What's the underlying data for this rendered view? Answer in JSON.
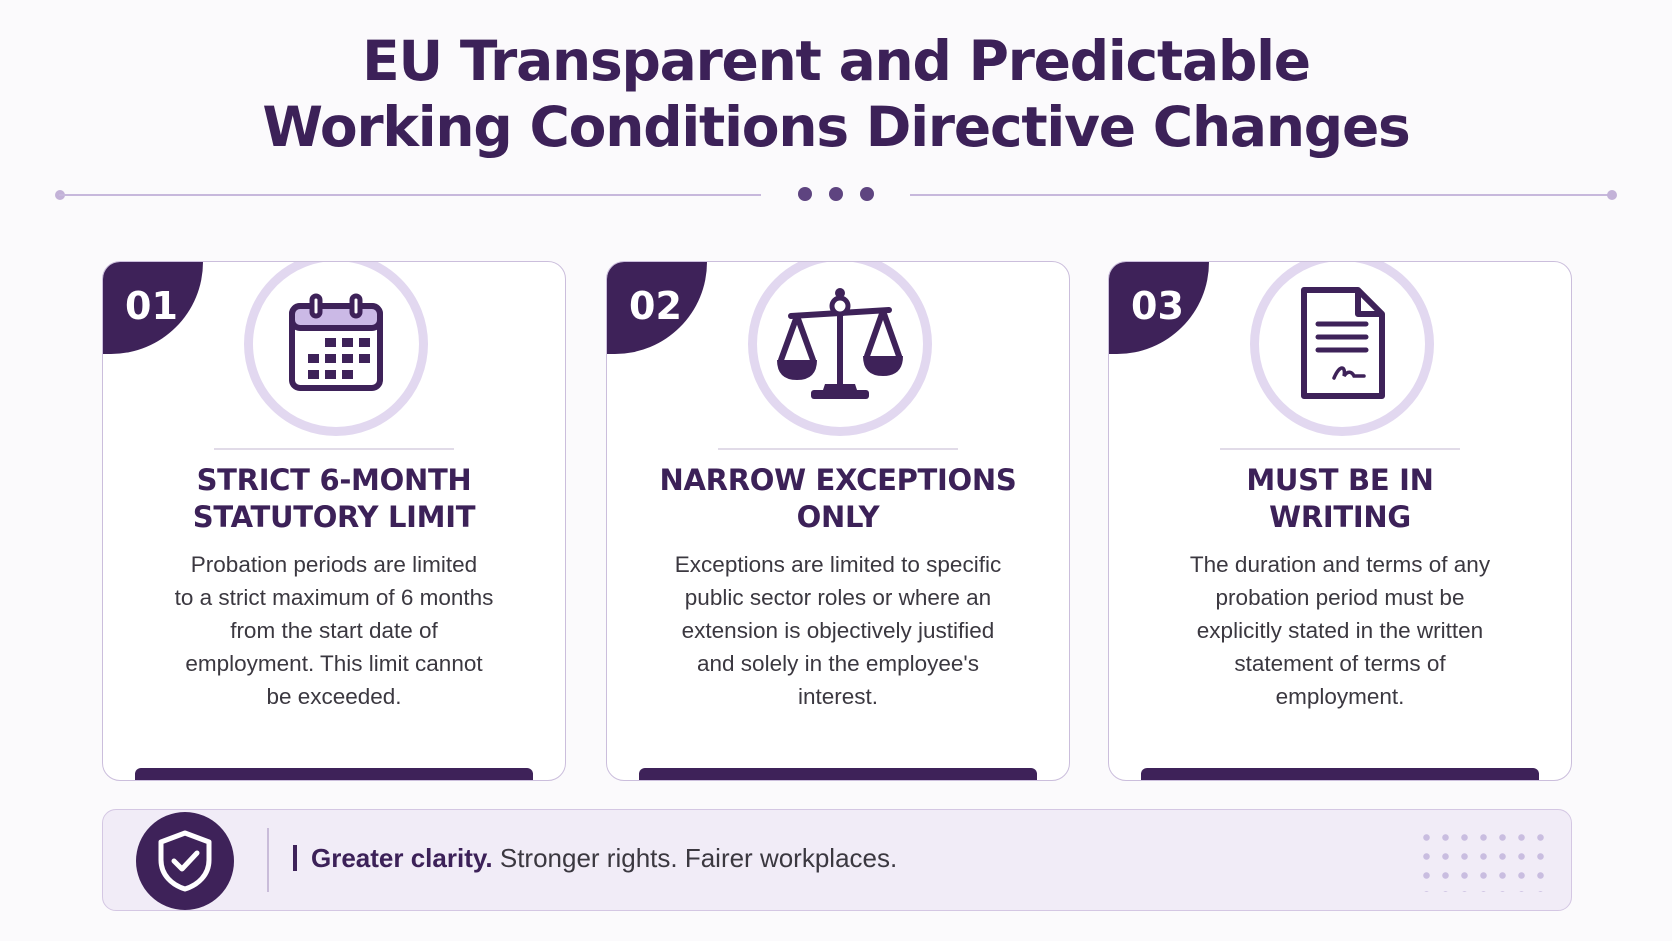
{
  "title": {
    "line1": "EU Transparent and Predictable",
    "line2": "Working Conditions Directive Changes"
  },
  "cards": [
    {
      "number": "01",
      "icon": "calendar-icon",
      "heading_line1": "STRICT 6-MONTH",
      "heading_line2": "STATUTORY LIMIT",
      "body_lines": [
        "Probation periods are limited",
        "to a strict maximum of 6 months",
        "from the start date of",
        "employment. This limit cannot",
        "be exceeded."
      ]
    },
    {
      "number": "02",
      "icon": "scales-of-justice-icon",
      "heading_line1": "NARROW EXCEPTIONS",
      "heading_line2": "ONLY",
      "body_lines": [
        "Exceptions are limited to specific",
        "public sector roles or where an",
        "extension is objectively justified",
        "and solely in the employee's",
        "interest."
      ]
    },
    {
      "number": "03",
      "icon": "signed-document-icon",
      "heading_line1": "MUST BE IN",
      "heading_line2": "WRITING",
      "body_lines": [
        "The duration and terms of any",
        "probation period must be",
        "explicitly stated in the written",
        "statement of terms of",
        "employment."
      ]
    }
  ],
  "footer": {
    "icon": "shield-check-icon",
    "tagline_strong": "Greater clarity.",
    "tagline_rest": " Stronger rights. Fairer workplaces."
  },
  "colors": {
    "primary": "#3e2259",
    "accent_light": "#e2d8f0",
    "background": "#fbfafc"
  }
}
